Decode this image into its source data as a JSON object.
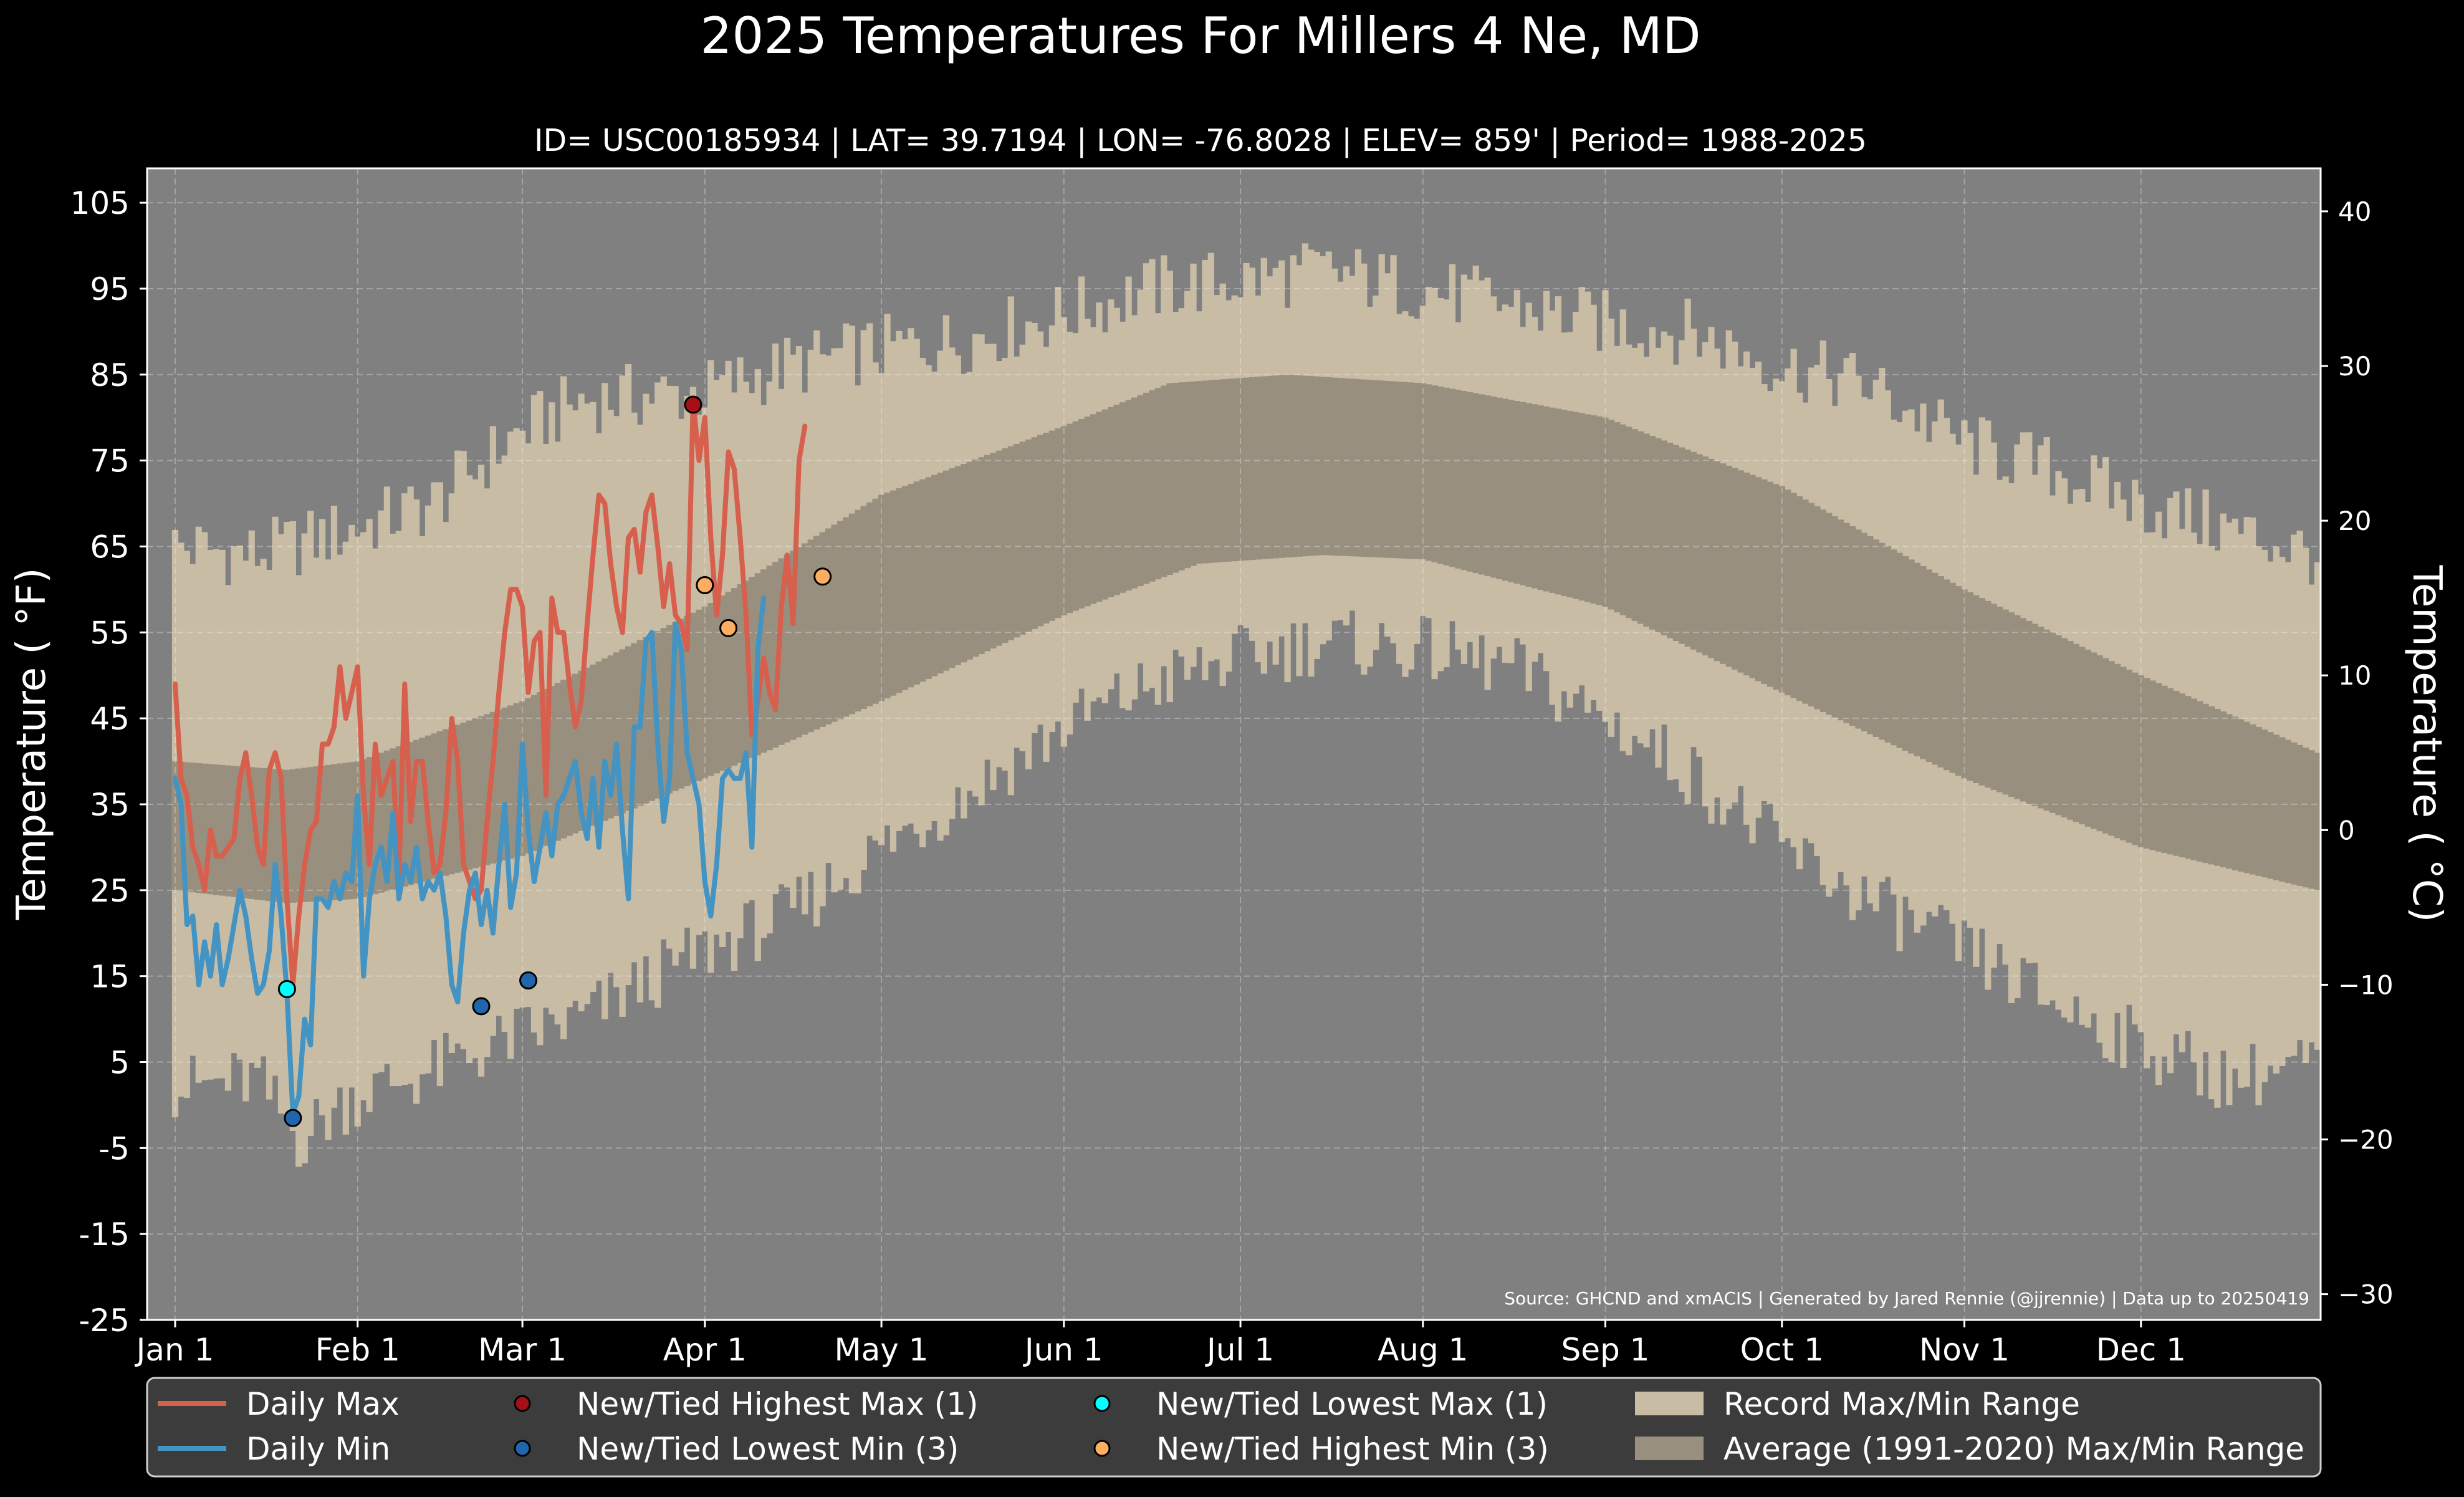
{
  "chart_data": {
    "type": "line",
    "title": "2025 Temperatures For Millers 4 Ne, MD",
    "subtitle": "ID= USC00185934 | LAT= 39.7194 | LON= -76.8028 | ELEV= 859' | Period= 1988-2025",
    "ylabel_left": "Temperature ( °F)",
    "ylabel_right": "Temperature ( °C)",
    "source_note": "Source: GHCND and xmACIS | Generated by Jared Rennie (@jjrennie) | Data up to 20250419",
    "ylim": [
      -25,
      109
    ],
    "grid": true,
    "legend_position": "bottom",
    "y_ticks_f": [
      -25,
      -15,
      -5,
      5,
      15,
      25,
      35,
      45,
      55,
      65,
      75,
      85,
      95,
      105
    ],
    "y_tick_labels_f": [
      "-25",
      "-15",
      "-5",
      "5",
      "15",
      "25",
      "35",
      "45",
      "55",
      "65",
      "75",
      "85",
      "95",
      "105"
    ],
    "y_ticks_c": [
      -30,
      -20,
      -10,
      0,
      10,
      20,
      30,
      40
    ],
    "y_tick_labels_c": [
      "−30",
      "−20",
      "−10",
      "0",
      "10",
      "20",
      "30",
      "40"
    ],
    "x_ticks": [
      {
        "label": "Jan 1",
        "day": 1
      },
      {
        "label": "Feb 1",
        "day": 32
      },
      {
        "label": "Mar 1",
        "day": 60
      },
      {
        "label": "Apr 1",
        "day": 91
      },
      {
        "label": "May 1",
        "day": 121
      },
      {
        "label": "Jun 1",
        "day": 152
      },
      {
        "label": "Jul 1",
        "day": 182
      },
      {
        "label": "Aug 1",
        "day": 213
      },
      {
        "label": "Sep 1",
        "day": 244
      },
      {
        "label": "Oct 1",
        "day": 274
      },
      {
        "label": "Nov 1",
        "day": 305
      },
      {
        "label": "Dec 1",
        "day": 335
      }
    ],
    "record_max_anchors": [
      [
        1,
        65
      ],
      [
        15,
        64
      ],
      [
        31,
        67
      ],
      [
        45,
        70
      ],
      [
        59,
        78
      ],
      [
        70,
        82
      ],
      [
        91,
        83
      ],
      [
        105,
        86
      ],
      [
        121,
        88
      ],
      [
        135,
        89
      ],
      [
        152,
        92
      ],
      [
        167,
        95
      ],
      [
        182,
        96
      ],
      [
        196,
        97
      ],
      [
        213,
        95
      ],
      [
        228,
        93
      ],
      [
        244,
        91
      ],
      [
        258,
        90
      ],
      [
        274,
        86
      ],
      [
        288,
        84
      ],
      [
        305,
        77
      ],
      [
        320,
        74
      ],
      [
        335,
        70
      ],
      [
        350,
        67
      ],
      [
        365,
        64
      ]
    ],
    "record_min_anchors": [
      [
        1,
        2
      ],
      [
        15,
        3
      ],
      [
        22,
        -4
      ],
      [
        31,
        1
      ],
      [
        45,
        4
      ],
      [
        59,
        8
      ],
      [
        70,
        10
      ],
      [
        80,
        14
      ],
      [
        91,
        18
      ],
      [
        105,
        22
      ],
      [
        121,
        30
      ],
      [
        135,
        36
      ],
      [
        152,
        44
      ],
      [
        167,
        49
      ],
      [
        182,
        52
      ],
      [
        196,
        54
      ],
      [
        213,
        53
      ],
      [
        228,
        51
      ],
      [
        244,
        45
      ],
      [
        258,
        39
      ],
      [
        274,
        30
      ],
      [
        288,
        24
      ],
      [
        305,
        18
      ],
      [
        320,
        12
      ],
      [
        335,
        7
      ],
      [
        350,
        3
      ],
      [
        365,
        5
      ]
    ],
    "avg_max_anchors": [
      [
        1,
        40
      ],
      [
        20,
        39
      ],
      [
        32,
        40
      ],
      [
        60,
        47
      ],
      [
        91,
        58
      ],
      [
        121,
        71
      ],
      [
        152,
        79
      ],
      [
        170,
        84
      ],
      [
        190,
        85
      ],
      [
        213,
        84
      ],
      [
        244,
        80
      ],
      [
        274,
        72
      ],
      [
        305,
        60
      ],
      [
        335,
        50
      ],
      [
        365,
        41
      ]
    ],
    "avg_min_anchors": [
      [
        1,
        25
      ],
      [
        20,
        23.5
      ],
      [
        32,
        24
      ],
      [
        60,
        29
      ],
      [
        91,
        38
      ],
      [
        121,
        47
      ],
      [
        152,
        57
      ],
      [
        175,
        63
      ],
      [
        196,
        64
      ],
      [
        213,
        63.5
      ],
      [
        244,
        58
      ],
      [
        274,
        48
      ],
      [
        305,
        38
      ],
      [
        335,
        30
      ],
      [
        365,
        25
      ]
    ],
    "series": [
      {
        "name": "Daily Max",
        "color": "#d6604d",
        "start_day": 1,
        "values": [
          49,
          38,
          36,
          30,
          28,
          25,
          32,
          29,
          29,
          30,
          31,
          38,
          41,
          36,
          30,
          28,
          39,
          41,
          38,
          24,
          14,
          22,
          28,
          32,
          33,
          42,
          42,
          44,
          51,
          45,
          48,
          51,
          36,
          28,
          42,
          36,
          38,
          40,
          26,
          49,
          33,
          40,
          40,
          33,
          27,
          28,
          34,
          45,
          40,
          28,
          26,
          24,
          25,
          33,
          40,
          48,
          55,
          60,
          60,
          58,
          48,
          54,
          55,
          36,
          59,
          55,
          55,
          49,
          44,
          47,
          56,
          64,
          71,
          70,
          63,
          58,
          55,
          66,
          67,
          62,
          69,
          71,
          65,
          58,
          63,
          57,
          56,
          53,
          82,
          75,
          80,
          66,
          57,
          64,
          76,
          74,
          66,
          57,
          43,
          47,
          52,
          48,
          46,
          58,
          64,
          56,
          75,
          79
        ]
      },
      {
        "name": "Daily Min",
        "color": "#4393c3",
        "start_day": 1,
        "values": [
          38,
          35,
          21,
          22,
          14,
          19,
          15,
          21,
          14,
          17,
          21,
          25,
          22,
          17,
          13,
          14,
          18,
          28,
          22,
          13,
          -1,
          1,
          10,
          7,
          24,
          24,
          23,
          26,
          24,
          27,
          26,
          36,
          15,
          24,
          28,
          30,
          26,
          34,
          24,
          28,
          26,
          30,
          24,
          26,
          25,
          27,
          22,
          14,
          12,
          20,
          25,
          27,
          21,
          25,
          20,
          28,
          35,
          23,
          27,
          42,
          32,
          26,
          30,
          34,
          29,
          35,
          36,
          38,
          40,
          34,
          31,
          38,
          30,
          40,
          36,
          42,
          32,
          24,
          44,
          44,
          54,
          55,
          42,
          33,
          38,
          56,
          53,
          41,
          38,
          35,
          26,
          22,
          28,
          38,
          39,
          38,
          38,
          41,
          30,
          53,
          59
        ]
      }
    ],
    "record_points": [
      {
        "category": "New/Tied Highest Max (1)",
        "day": 89,
        "value": 81.5,
        "color": "#a50f15"
      },
      {
        "category": "New/Tied Lowest Min (3)",
        "day": 21,
        "value": -1.5,
        "color": "#2166ac"
      },
      {
        "category": "New/Tied Lowest Min (3)",
        "day": 53,
        "value": 11.5,
        "color": "#2166ac"
      },
      {
        "category": "New/Tied Lowest Min (3)",
        "day": 61,
        "value": 14.5,
        "color": "#2166ac"
      },
      {
        "category": "New/Tied Lowest Max (1)",
        "day": 20,
        "value": 13.5,
        "color": "#00ffff"
      },
      {
        "category": "New/Tied Highest Min (3)",
        "day": 91,
        "value": 60.5,
        "color": "#fdae61"
      },
      {
        "category": "New/Tied Highest Min (3)",
        "day": 95,
        "value": 55.5,
        "color": "#fdae61"
      },
      {
        "category": "New/Tied Highest Min (3)",
        "day": 111,
        "value": 61.5,
        "color": "#fdae61"
      }
    ],
    "colors": {
      "background": "#000000",
      "plot_background": "#808080",
      "record_range": "#c8bca5",
      "average_range": "#988f7f",
      "legend_background": "#3c3c3c"
    }
  },
  "legend": {
    "items": [
      {
        "label": "Daily Max",
        "kind": "line",
        "color": "#d6604d"
      },
      {
        "label": "Daily Min",
        "kind": "line",
        "color": "#4393c3"
      },
      {
        "label": "New/Tied Highest Max (1)",
        "kind": "marker",
        "color": "#a50f15"
      },
      {
        "label": "New/Tied Lowest Min (3)",
        "kind": "marker",
        "color": "#2166ac"
      },
      {
        "label": "New/Tied Lowest Max (1)",
        "kind": "marker",
        "color": "#00ffff"
      },
      {
        "label": "New/Tied Highest Min (3)",
        "kind": "marker",
        "color": "#fdae61"
      },
      {
        "label": "Record Max/Min Range",
        "kind": "patch",
        "color": "#c8bca5"
      },
      {
        "label": "Average (1991-2020) Max/Min Range",
        "kind": "patch",
        "color": "#988f7f"
      }
    ]
  }
}
